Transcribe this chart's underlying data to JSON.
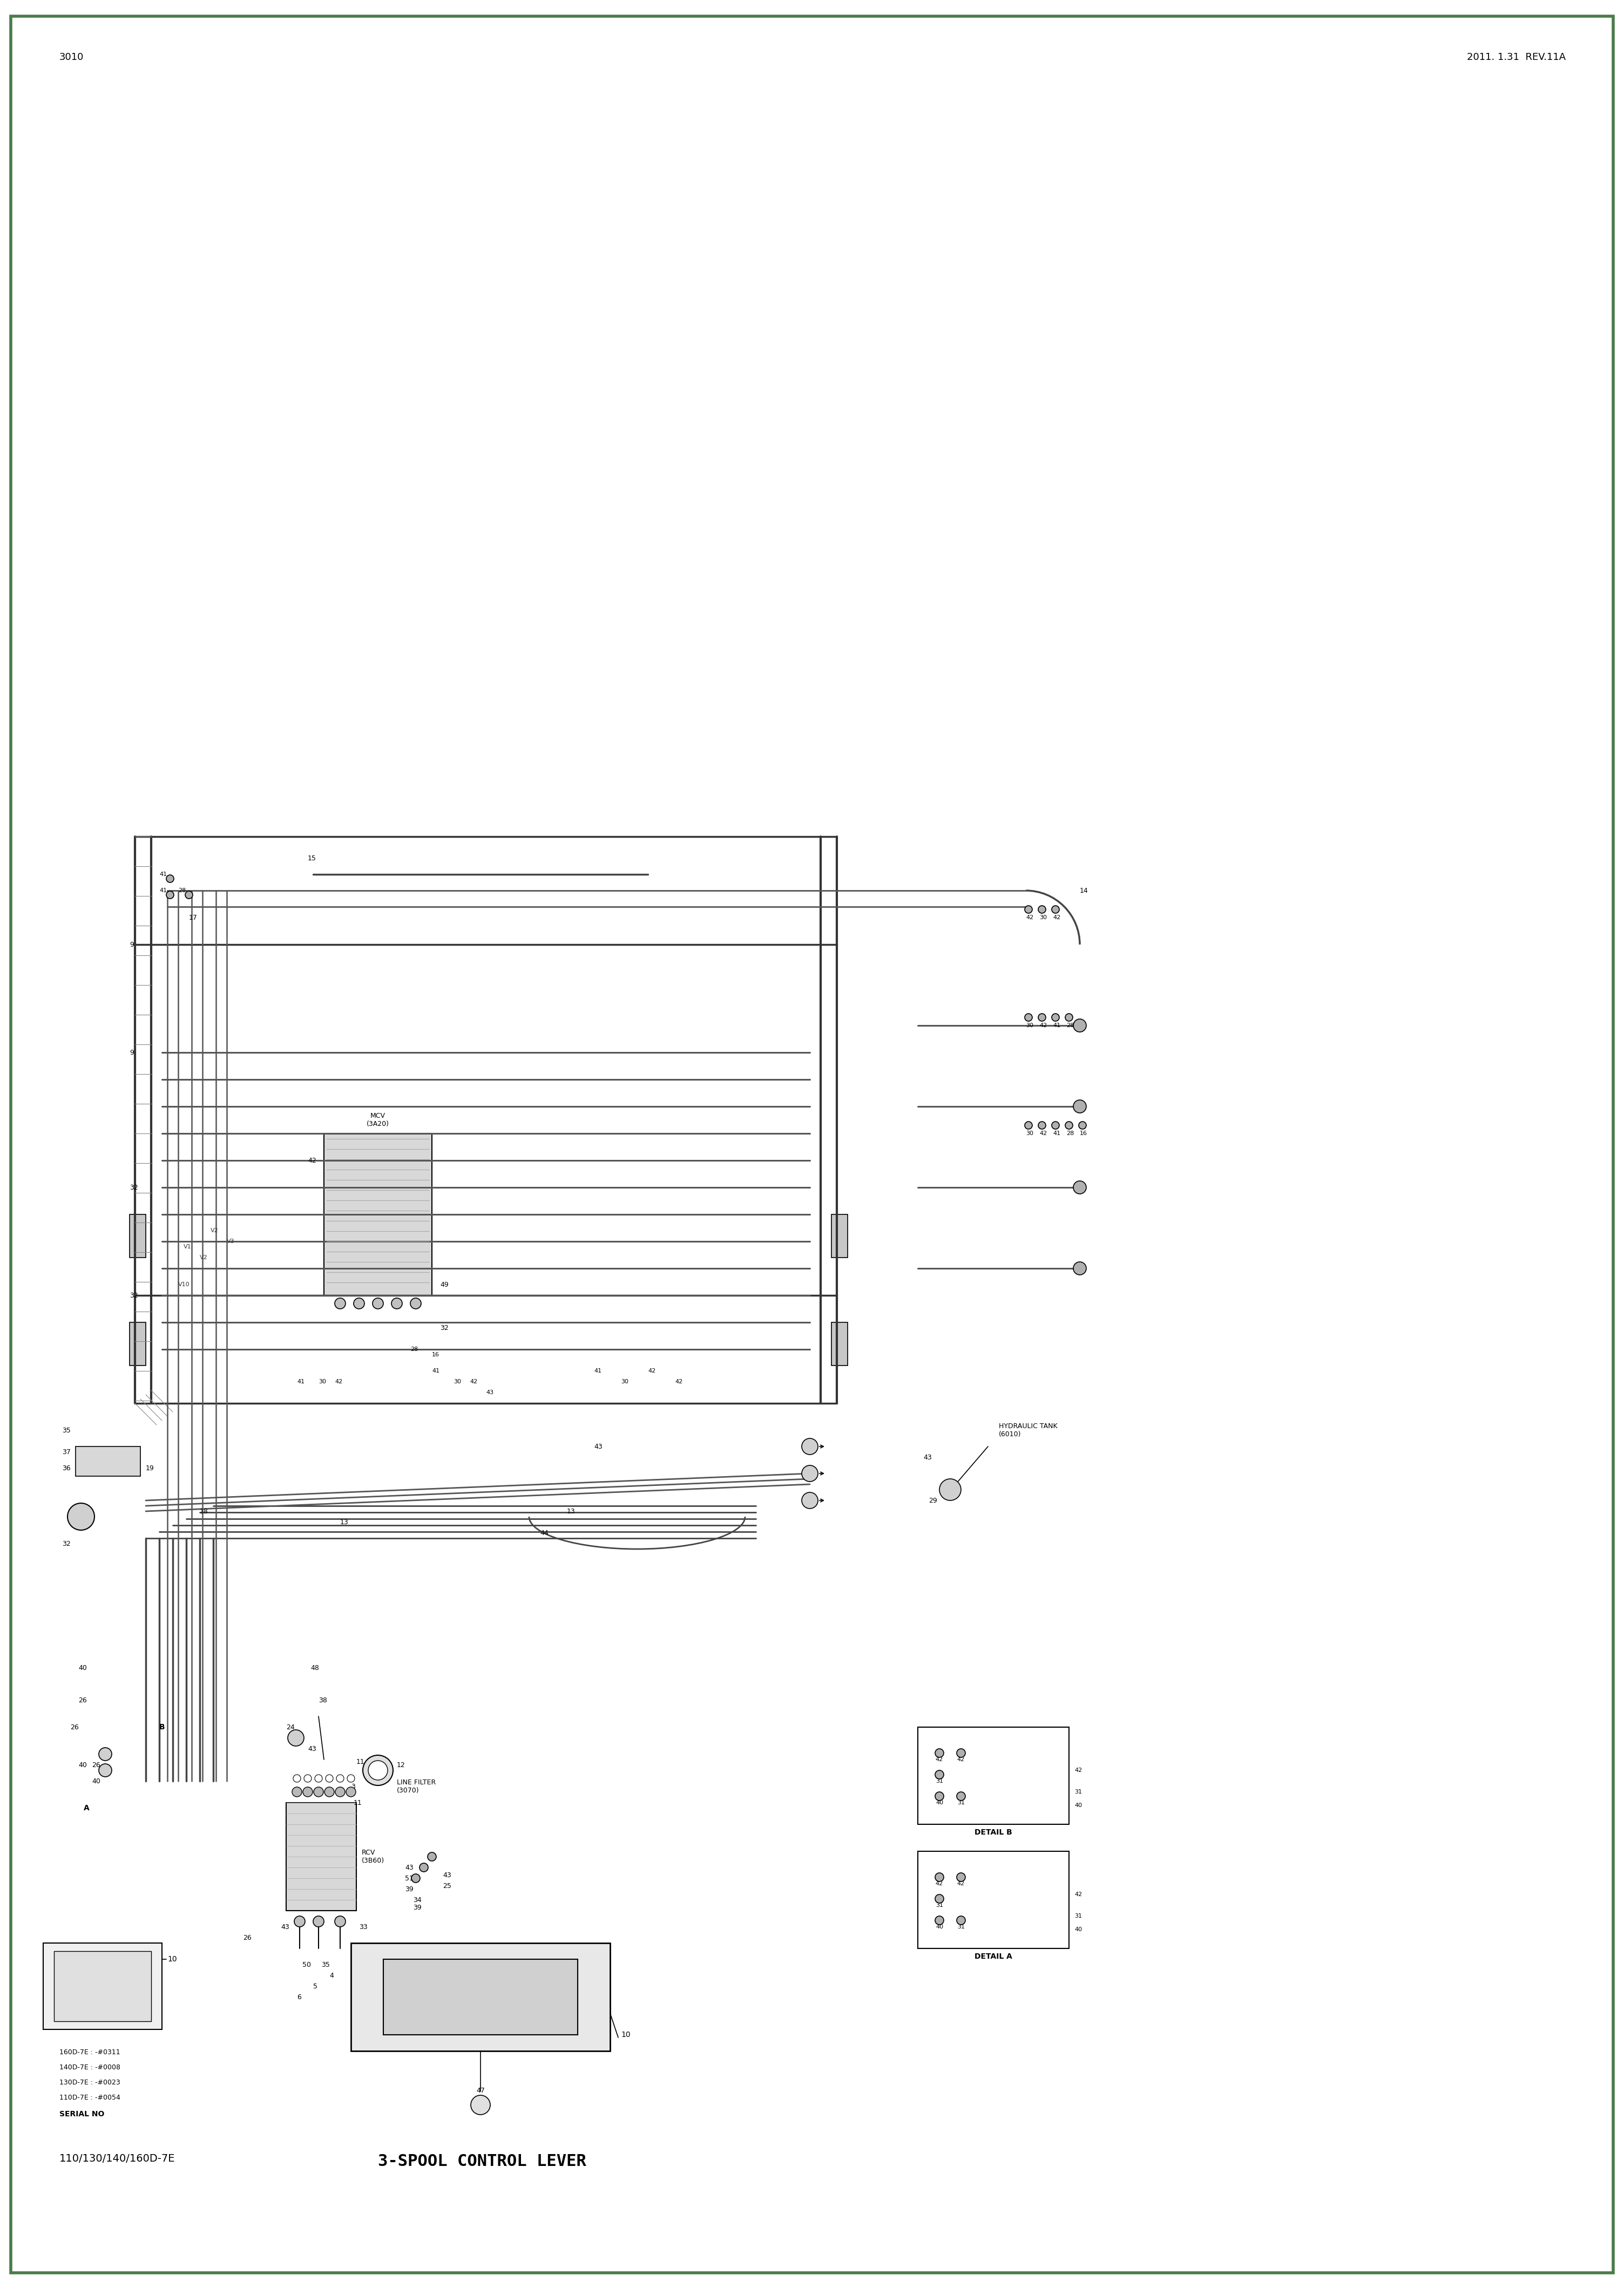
{
  "title": "3-SPOOL CONTROL LEVER",
  "subtitle": "110/130/140/160D-7E",
  "serial_no_label": "SERIAL NO",
  "serial_nos": [
    "110D-7E : -#0054",
    "130D-7E : -#0023",
    "140D-7E : -#0008",
    "160D-7E : -#0311"
  ],
  "bottom_left": "3010",
  "bottom_right": "2011. 1.31  REV.11A",
  "detail_a_label": "DETAIL A",
  "detail_b_label": "DETAIL B",
  "rcv_label": "RCV\n(3B60)",
  "line_filter_label": "LINE FILTER\n(3070)",
  "mcv_label": "MCV\n(3A20)",
  "hydraulic_tank_label": "HYDRAULIC TANK\n(6010)",
  "bg_color": "#ffffff",
  "line_color": "#000000",
  "border_color": "#4a7c4a",
  "text_color": "#000000",
  "font_family": "DejaVu Sans",
  "title_fontsize": 22,
  "label_fontsize": 11,
  "small_fontsize": 9
}
